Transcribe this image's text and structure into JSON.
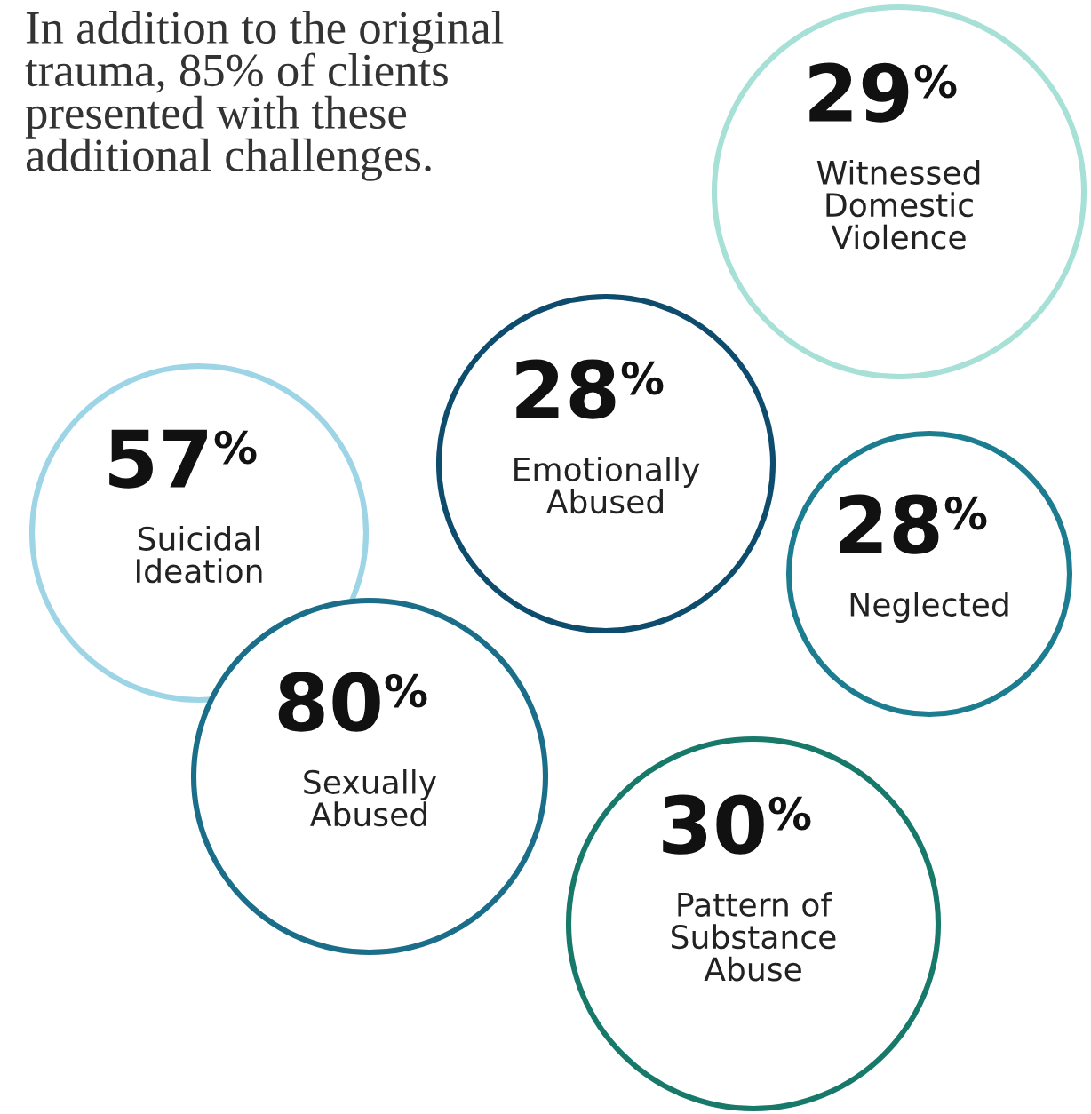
{
  "chart_data": {
    "type": "other",
    "title": "In addition to the original\ntrauma, 85% of clients\npresented with these\nadditional challenges.",
    "categories": [
      "Witnessed\nDomestic\nViolence",
      "Emotionally\nAbused",
      "Neglected",
      "Suicidal\nIdeation",
      "Sexually\nAbused",
      "Pattern of\nSubstance\nAbuse"
    ],
    "values": [
      29,
      28,
      28,
      57,
      80,
      30
    ],
    "value_labels": [
      "29%",
      "28%",
      "28%",
      "57%",
      "80%",
      "30%"
    ],
    "colors": [
      "#a6e0d6",
      "#0e4c6e",
      "#1b7d8f",
      "#9dd5e6",
      "#1a6e8a",
      "#17796a"
    ]
  }
}
